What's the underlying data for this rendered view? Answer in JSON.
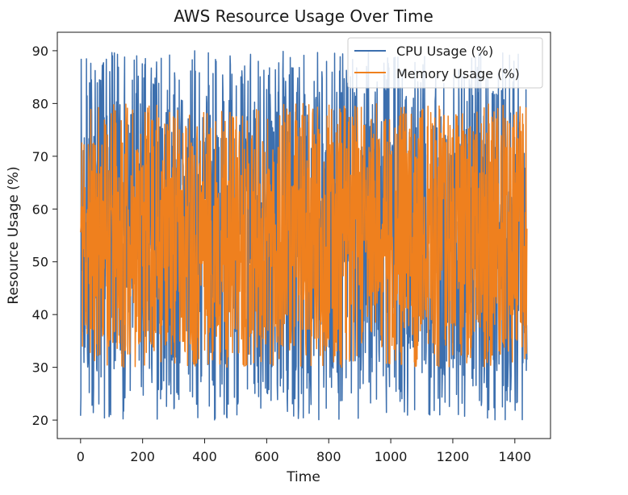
{
  "chart_data": {
    "type": "line",
    "title": "AWS Resource Usage Over Time",
    "xlabel": "Time",
    "ylabel": "Resource Usage (%)",
    "xlim": [
      -75,
      1515
    ],
    "ylim": [
      16.5,
      93.5
    ],
    "xticks": [
      0,
      200,
      400,
      600,
      800,
      1000,
      1200,
      1400
    ],
    "yticks": [
      20,
      30,
      40,
      50,
      60,
      70,
      80,
      90
    ],
    "grid": false,
    "legend_position": "top-right",
    "series": [
      {
        "name": "CPU Usage (%)",
        "color": "#3c6fae",
        "generator": {
          "kind": "uniform-noise",
          "min": 20,
          "max": 90,
          "n": 1440,
          "seed": 7
        }
      },
      {
        "name": "Memory Usage (%)",
        "color": "#ef801e",
        "generator": {
          "kind": "uniform-noise",
          "min": 30,
          "max": 80,
          "n": 1440,
          "seed": 11
        }
      }
    ]
  }
}
